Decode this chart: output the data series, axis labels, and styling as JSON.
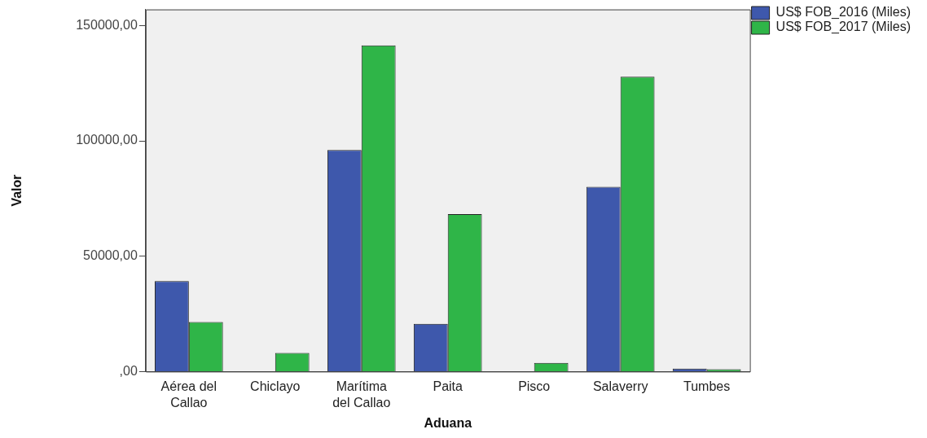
{
  "chart_data": {
    "type": "bar",
    "xlabel": "Aduana",
    "ylabel": "Valor",
    "categories": [
      "Aérea del Callao",
      "Chiclayo",
      "Marítima del Callao",
      "Paita",
      "Pisco",
      "Salaverry",
      "Tumbes"
    ],
    "series": [
      {
        "name": "US$ FOB_2016 (Miles)",
        "color": "#3e58ac",
        "values": [
          39200,
          null,
          96100,
          20700,
          null,
          80100,
          1300
        ]
      },
      {
        "name": "US$ FOB_2017 (Miles)",
        "color": "#2fb548",
        "values": [
          21500,
          8100,
          141400,
          68300,
          3800,
          127800,
          1000
        ]
      }
    ],
    "ylim": [
      0,
      157000
    ],
    "yticks": [
      {
        "value": 0,
        "label": ",00"
      },
      {
        "value": 50000,
        "label": "50000,00"
      },
      {
        "value": 100000,
        "label": "100000,00"
      },
      {
        "value": 150000,
        "label": "150000,00"
      }
    ],
    "grid": false,
    "legend": "top right"
  }
}
